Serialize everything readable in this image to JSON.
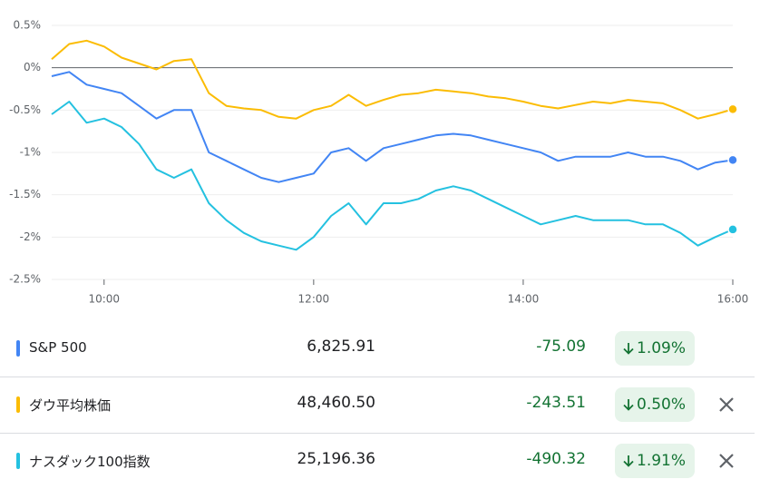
{
  "chart_data": {
    "type": "line",
    "x": [
      570,
      580,
      590,
      600,
      610,
      620,
      630,
      640,
      650,
      660,
      670,
      680,
      690,
      700,
      710,
      720,
      730,
      740,
      750,
      760,
      770,
      780,
      790,
      800,
      810,
      820,
      830,
      840,
      850,
      860,
      870,
      880,
      890,
      900,
      910,
      920,
      930,
      940,
      950,
      960
    ],
    "xlim": [
      570,
      960
    ],
    "xticks": [
      {
        "value": 600,
        "label": "10:00"
      },
      {
        "value": 720,
        "label": "12:00"
      },
      {
        "value": 840,
        "label": "14:00"
      },
      {
        "value": 960,
        "label": "16:00"
      }
    ],
    "ylim": [
      -2.5,
      0.5
    ],
    "yticks": [
      {
        "value": 0.5,
        "label": "0.5%"
      },
      {
        "value": 0,
        "label": "0%"
      },
      {
        "value": -0.5,
        "label": "-0.5%"
      },
      {
        "value": -1,
        "label": "-1%"
      },
      {
        "value": -1.5,
        "label": "-1.5%"
      },
      {
        "value": -2,
        "label": "-2%"
      },
      {
        "value": -2.5,
        "label": "-2.5%"
      }
    ],
    "grid": true,
    "series": [
      {
        "name": "S&P 500",
        "color": "#4285f4",
        "values": [
          -0.1,
          -0.05,
          -0.2,
          -0.25,
          -0.3,
          -0.45,
          -0.6,
          -0.5,
          -0.5,
          -1.0,
          -1.1,
          -1.2,
          -1.3,
          -1.35,
          -1.3,
          -1.25,
          -1.0,
          -0.95,
          -1.1,
          -0.95,
          -0.9,
          -0.85,
          -0.8,
          -0.78,
          -0.8,
          -0.85,
          -0.9,
          -0.95,
          -1.0,
          -1.1,
          -1.05,
          -1.05,
          -1.05,
          -1.0,
          -1.05,
          -1.05,
          -1.1,
          -1.2,
          -1.12,
          -1.09
        ]
      },
      {
        "name": "ダウ平均株価",
        "color": "#fbbc04",
        "values": [
          0.1,
          0.28,
          0.32,
          0.25,
          0.12,
          0.05,
          -0.02,
          0.08,
          0.1,
          -0.3,
          -0.45,
          -0.48,
          -0.5,
          -0.58,
          -0.6,
          -0.5,
          -0.45,
          -0.32,
          -0.45,
          -0.38,
          -0.32,
          -0.3,
          -0.26,
          -0.28,
          -0.3,
          -0.34,
          -0.36,
          -0.4,
          -0.45,
          -0.48,
          -0.44,
          -0.4,
          -0.42,
          -0.38,
          -0.4,
          -0.42,
          -0.5,
          -0.6,
          -0.55,
          -0.49
        ]
      },
      {
        "name": "ナスダック100指数",
        "color": "#24c1e0",
        "values": [
          -0.55,
          -0.4,
          -0.65,
          -0.6,
          -0.7,
          -0.9,
          -1.2,
          -1.3,
          -1.2,
          -1.6,
          -1.8,
          -1.95,
          -2.05,
          -2.1,
          -2.15,
          -2.0,
          -1.75,
          -1.6,
          -1.85,
          -1.6,
          -1.6,
          -1.55,
          -1.45,
          -1.4,
          -1.45,
          -1.55,
          -1.65,
          -1.75,
          -1.85,
          -1.8,
          -1.75,
          -1.8,
          -1.8,
          -1.8,
          -1.85,
          -1.85,
          -1.95,
          -2.1,
          -2.0,
          -1.91
        ]
      }
    ]
  },
  "table": {
    "rows": [
      {
        "price": "6,825.91",
        "change": "-75.09",
        "change_pct": "1.09%",
        "removable": false
      },
      {
        "price": "48,460.50",
        "change": "-243.51",
        "change_pct": "0.50%",
        "removable": true
      },
      {
        "price": "25,196.36",
        "change": "-490.32",
        "change_pct": "1.91%",
        "removable": true
      }
    ]
  }
}
